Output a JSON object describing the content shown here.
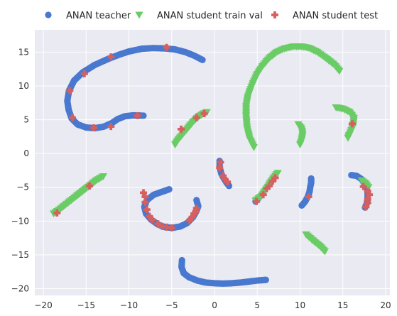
{
  "chart_data": {
    "type": "scatter",
    "title": "",
    "xlabel": "",
    "ylabel": "",
    "xlim": [
      -21,
      20.5
    ],
    "ylim": [
      -21,
      18.3
    ],
    "xticks": [
      -20,
      -15,
      -10,
      -5,
      0,
      5,
      10,
      15,
      20
    ],
    "yticks": [
      -20,
      -15,
      -10,
      -5,
      0,
      5,
      10,
      15
    ],
    "grid": true,
    "legend_position": "top",
    "style": {
      "background": "#eaeaf2",
      "grid_color": "#ffffff"
    },
    "series": [
      {
        "name": "ANAN teacher",
        "marker": "circle",
        "color": "#4878cf",
        "segments": [
          [
            [
              -8.3,
              5.6
            ],
            [
              -9.5,
              5.65
            ],
            [
              -10.5,
              5.5
            ],
            [
              -11.3,
              5.1
            ],
            [
              -12.0,
              4.5
            ],
            [
              -13.0,
              3.95
            ],
            [
              -14.0,
              3.75
            ],
            [
              -15.0,
              3.85
            ],
            [
              -16.0,
              4.3
            ],
            [
              -16.7,
              5.2
            ],
            [
              -17.05,
              6.5
            ],
            [
              -17.2,
              7.8
            ],
            [
              -17.0,
              9.3
            ],
            [
              -16.4,
              10.8
            ],
            [
              -15.4,
              12.0
            ],
            [
              -14.0,
              13.1
            ],
            [
              -12.6,
              13.9
            ],
            [
              -11.2,
              14.6
            ],
            [
              -10.0,
              15.1
            ],
            [
              -8.5,
              15.5
            ],
            [
              -7.2,
              15.6
            ],
            [
              -5.8,
              15.55
            ],
            [
              -4.6,
              15.4
            ],
            [
              -3.4,
              15.0
            ],
            [
              -2.4,
              14.5
            ],
            [
              -1.4,
              13.85
            ]
          ],
          [
            [
              -5.3,
              -5.3
            ],
            [
              -6.2,
              -5.7
            ],
            [
              -7.1,
              -6.1
            ],
            [
              -7.9,
              -6.9
            ],
            [
              -8.2,
              -7.9
            ],
            [
              -8.0,
              -8.9
            ],
            [
              -7.4,
              -9.8
            ],
            [
              -6.6,
              -10.5
            ],
            [
              -5.8,
              -10.9
            ],
            [
              -4.9,
              -11.0
            ],
            [
              -4.0,
              -10.8
            ],
            [
              -3.2,
              -10.3
            ],
            [
              -2.5,
              -9.4
            ],
            [
              -2.1,
              -8.5
            ],
            [
              -1.9,
              -7.8
            ],
            [
              -2.1,
              -6.9
            ]
          ],
          [
            [
              -3.8,
              -15.8
            ],
            [
              -3.85,
              -16.8
            ],
            [
              -3.6,
              -17.7
            ],
            [
              -3.0,
              -18.3
            ],
            [
              -2.0,
              -18.8
            ],
            [
              -1.0,
              -19.1
            ],
            [
              0.0,
              -19.2
            ],
            [
              1.0,
              -19.25
            ],
            [
              2.0,
              -19.2
            ],
            [
              3.0,
              -19.1
            ],
            [
              4.0,
              -18.95
            ],
            [
              5.0,
              -18.8
            ],
            [
              6.0,
              -18.7
            ]
          ],
          [
            [
              0.6,
              -1.1
            ],
            [
              0.6,
              -2.0
            ],
            [
              0.8,
              -3.0
            ],
            [
              1.1,
              -3.7
            ],
            [
              1.4,
              -4.3
            ],
            [
              1.7,
              -4.8
            ]
          ],
          [
            [
              4.8,
              -7.1
            ],
            [
              5.1,
              -6.7
            ]
          ],
          [
            [
              10.2,
              -7.7
            ],
            [
              10.6,
              -7.1
            ],
            [
              10.9,
              -6.4
            ],
            [
              11.1,
              -5.7
            ],
            [
              11.2,
              -4.9
            ],
            [
              11.3,
              -4.3
            ],
            [
              11.3,
              -3.7
            ]
          ],
          [
            [
              16.0,
              -3.2
            ],
            [
              16.6,
              -3.3
            ],
            [
              17.2,
              -3.8
            ],
            [
              17.6,
              -4.6
            ],
            [
              17.9,
              -5.6
            ],
            [
              17.9,
              -6.6
            ],
            [
              17.8,
              -7.4
            ],
            [
              17.6,
              -8.0
            ]
          ]
        ]
      },
      {
        "name": "ANAN student train val",
        "marker": "triangle-down",
        "color": "#6acc65",
        "segments": [
          [
            [
              -4.6,
              1.3
            ],
            [
              -4.2,
              2.1
            ],
            [
              -3.6,
              3.0
            ],
            [
              -3.0,
              3.9
            ],
            [
              -2.4,
              4.8
            ],
            [
              -1.9,
              5.4
            ],
            [
              -1.4,
              5.8
            ],
            [
              -0.9,
              6.1
            ]
          ],
          [
            [
              4.6,
              0.9
            ],
            [
              4.1,
              2.2
            ],
            [
              3.8,
              3.8
            ],
            [
              3.7,
              5.4
            ],
            [
              3.7,
              7.0
            ],
            [
              3.9,
              8.4
            ],
            [
              4.3,
              9.8
            ],
            [
              4.9,
              11.5
            ],
            [
              5.6,
              12.9
            ],
            [
              6.4,
              14.1
            ],
            [
              7.3,
              15.0
            ],
            [
              8.2,
              15.5
            ],
            [
              9.2,
              15.8
            ],
            [
              10.2,
              15.8
            ],
            [
              11.0,
              15.6
            ],
            [
              12.0,
              15.0
            ],
            [
              13.0,
              14.1
            ],
            [
              14.0,
              13.1
            ],
            [
              14.6,
              12.2
            ]
          ],
          [
            [
              9.8,
              4.3
            ],
            [
              10.2,
              3.6
            ],
            [
              10.3,
              2.8
            ],
            [
              10.2,
              2.1
            ],
            [
              10.0,
              1.3
            ]
          ],
          [
            [
              14.2,
              6.8
            ],
            [
              15.0,
              6.6
            ],
            [
              15.8,
              6.1
            ],
            [
              16.3,
              5.2
            ],
            [
              16.2,
              4.0
            ],
            [
              15.8,
              2.9
            ],
            [
              15.6,
              2.3
            ]
          ],
          [
            [
              -18.8,
              -8.9
            ],
            [
              -18.0,
              -8.2
            ],
            [
              -17.1,
              -7.3
            ],
            [
              -16.2,
              -6.4
            ],
            [
              -15.4,
              -5.6
            ],
            [
              -14.6,
              -4.8
            ],
            [
              -13.8,
              -4.0
            ],
            [
              -13.0,
              -3.4
            ]
          ],
          [
            [
              4.8,
              -7.0
            ],
            [
              5.5,
              -6.3
            ],
            [
              6.1,
              -5.2
            ],
            [
              6.6,
              -4.2
            ],
            [
              7.1,
              -3.3
            ],
            [
              7.4,
              -2.9
            ]
          ],
          [
            [
              10.7,
              -12.0
            ],
            [
              11.5,
              -12.9
            ],
            [
              12.3,
              -13.7
            ],
            [
              12.9,
              -14.5
            ]
          ],
          [
            [
              17.2,
              -4.0
            ],
            [
              17.7,
              -4.5
            ],
            [
              18.0,
              -5.0
            ]
          ]
        ]
      },
      {
        "name": "ANAN student test",
        "marker": "plus",
        "color": "#d65f5f",
        "points": [
          [
            -5.6,
            15.7
          ],
          [
            -12.1,
            14.3
          ],
          [
            -15.2,
            11.8
          ],
          [
            -16.9,
            9.3
          ],
          [
            -16.6,
            5.3
          ],
          [
            -14.1,
            3.8
          ],
          [
            -12.1,
            4.0
          ],
          [
            -9.0,
            5.6
          ],
          [
            -3.9,
            3.6
          ],
          [
            -2.1,
            5.3
          ],
          [
            -1.2,
            5.9
          ],
          [
            -8.3,
            -5.8
          ],
          [
            -8.1,
            -6.4
          ],
          [
            -8.1,
            -7.2
          ],
          [
            -7.9,
            -8.3
          ],
          [
            -7.6,
            -9.3
          ],
          [
            -7.3,
            -9.8
          ],
          [
            -6.6,
            -10.4
          ],
          [
            -6.1,
            -10.8
          ],
          [
            -5.6,
            -10.9
          ],
          [
            -5.0,
            -11.0
          ],
          [
            -2.9,
            -9.9
          ],
          [
            -2.6,
            -9.4
          ],
          [
            -2.4,
            -8.9
          ],
          [
            -2.2,
            -8.6
          ],
          [
            -2.1,
            -8.1
          ],
          [
            0.7,
            -1.3
          ],
          [
            0.6,
            -2.1
          ],
          [
            1.0,
            -3.3
          ],
          [
            1.2,
            -3.8
          ],
          [
            1.5,
            -4.2
          ],
          [
            4.9,
            -7.1
          ],
          [
            5.7,
            -6.1
          ],
          [
            6.1,
            -5.2
          ],
          [
            6.4,
            -4.8
          ],
          [
            6.8,
            -4.1
          ],
          [
            7.1,
            -3.6
          ],
          [
            11.0,
            -6.4
          ],
          [
            16.1,
            4.4
          ],
          [
            17.4,
            -4.9
          ],
          [
            17.9,
            -5.6
          ],
          [
            18.1,
            -6.1
          ],
          [
            17.9,
            -6.8
          ],
          [
            17.9,
            -7.3
          ],
          [
            17.7,
            -7.9
          ],
          [
            -18.4,
            -8.8
          ],
          [
            -14.6,
            -4.8
          ]
        ]
      }
    ]
  }
}
